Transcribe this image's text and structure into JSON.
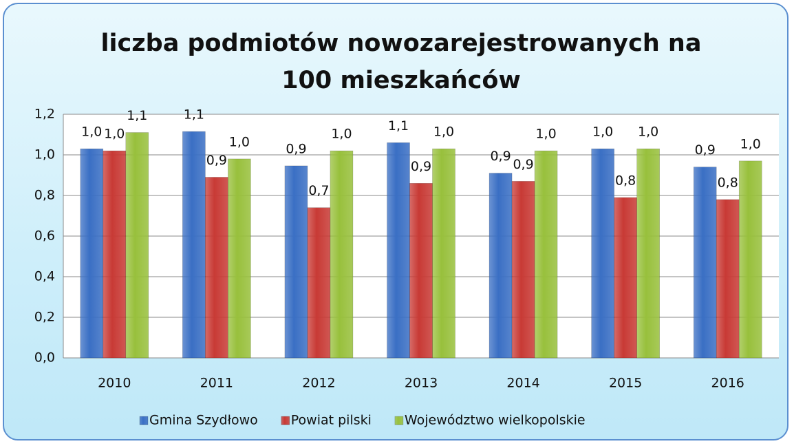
{
  "chart_data": {
    "type": "bar",
    "title": "liczba podmiotów nowozarejestrowanych na 100 mieszkańców",
    "categories": [
      "2010",
      "2011",
      "2012",
      "2013",
      "2014",
      "2015",
      "2016"
    ],
    "series": [
      {
        "name": "Gmina Szydłowo",
        "color": "#3a6fc4",
        "values": [
          1.03,
          1.115,
          0.946,
          1.06,
          0.91,
          1.03,
          0.94
        ],
        "value_labels": [
          "1,0",
          "1,1",
          "0,9",
          "1,1",
          "0,9",
          "1,0",
          "0,9"
        ]
      },
      {
        "name": "Powiat pilski",
        "color": "#c83a35",
        "values": [
          1.02,
          0.89,
          0.74,
          0.86,
          0.87,
          0.79,
          0.78
        ],
        "value_labels": [
          "1,0",
          "0,9",
          "0,7",
          "0,9",
          "0,9",
          "0,8",
          "0,8"
        ]
      },
      {
        "name": "Województwo wielkopolskie",
        "color": "#98c03c",
        "values": [
          1.11,
          0.98,
          1.02,
          1.03,
          1.02,
          1.03,
          0.97
        ],
        "value_labels": [
          "1,1",
          "1,0",
          "1,0",
          "1,0",
          "1,0",
          "1,0",
          "1,0"
        ]
      }
    ],
    "ylim": [
      0,
      1.2
    ],
    "yticks": [
      {
        "value": 0,
        "label": "0,0"
      },
      {
        "value": 0.2,
        "label": "0,2"
      },
      {
        "value": 0.4,
        "label": "0,4"
      },
      {
        "value": 0.6,
        "label": "0,6"
      },
      {
        "value": 0.8,
        "label": "0,8"
      },
      {
        "value": 1.0,
        "label": "1,0"
      },
      {
        "value": 1.2,
        "label": "1,2"
      }
    ],
    "grid": true,
    "legend": "bottom"
  }
}
